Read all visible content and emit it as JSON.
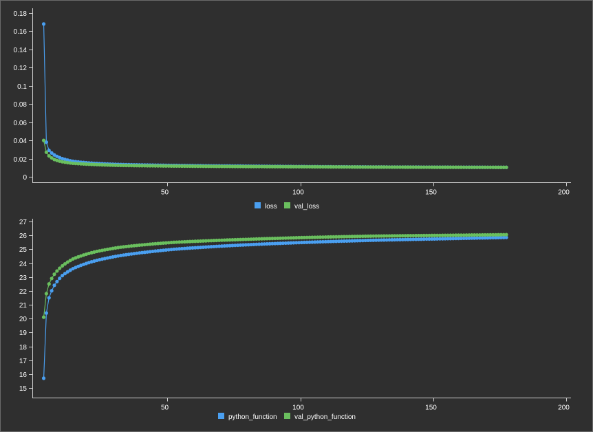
{
  "colors": {
    "background": "#2f2f2f",
    "axis": "#cfcfcf",
    "text": "#ffffff",
    "series_blue": "#4a9ff0",
    "series_green": "#6abf5e"
  },
  "chart_data": [
    {
      "type": "line",
      "title": "",
      "xlabel": "",
      "ylabel": "",
      "xlim": [
        0,
        200
      ],
      "ylim": [
        -0.005,
        0.185
      ],
      "x_ticks": [
        "50",
        "100",
        "150",
        "200"
      ],
      "y_ticks": [
        "0",
        "0.02",
        "0.04",
        "0.06",
        "0.08",
        "0.1",
        "0.12",
        "0.14",
        "0.16",
        "0.18"
      ],
      "legend": {
        "placement": "bottom-center"
      },
      "grid": false,
      "epochs": 175,
      "series": [
        {
          "name": "loss",
          "color": "#4a9ff0",
          "anchors": [
            [
              1,
              0.168
            ],
            [
              2,
              0.038
            ],
            [
              3,
              0.029
            ],
            [
              5,
              0.024
            ],
            [
              8,
              0.02
            ],
            [
              12,
              0.017
            ],
            [
              20,
              0.0148
            ],
            [
              30,
              0.0135
            ],
            [
              50,
              0.0125
            ],
            [
              75,
              0.0118
            ],
            [
              100,
              0.0112
            ],
            [
              125,
              0.0108
            ],
            [
              150,
              0.0106
            ],
            [
              175,
              0.0104
            ]
          ]
        },
        {
          "name": "val_loss",
          "color": "#6abf5e",
          "anchors": [
            [
              1,
              0.04
            ],
            [
              2,
              0.027
            ],
            [
              3,
              0.023
            ],
            [
              5,
              0.019
            ],
            [
              8,
              0.0165
            ],
            [
              12,
              0.0148
            ],
            [
              20,
              0.0135
            ],
            [
              30,
              0.0125
            ],
            [
              50,
              0.0118
            ],
            [
              75,
              0.0113
            ],
            [
              100,
              0.011
            ],
            [
              125,
              0.0107
            ],
            [
              150,
              0.0105
            ],
            [
              175,
              0.0104
            ]
          ]
        }
      ]
    },
    {
      "type": "line",
      "title": "",
      "xlabel": "",
      "ylabel": "",
      "xlim": [
        0,
        200
      ],
      "ylim": [
        14.75,
        27.1
      ],
      "x_ticks": [
        "50",
        "100",
        "150",
        "200"
      ],
      "y_ticks": [
        "15",
        "16",
        "17",
        "18",
        "19",
        "20",
        "21",
        "22",
        "23",
        "24",
        "25",
        "26",
        "27"
      ],
      "legend": {
        "placement": "bottom-center"
      },
      "grid": false,
      "epochs": 175,
      "series": [
        {
          "name": "python_function",
          "color": "#4a9ff0",
          "anchors": [
            [
              1,
              15.7
            ],
            [
              2,
              20.4
            ],
            [
              3,
              21.5
            ],
            [
              5,
              22.4
            ],
            [
              8,
              23.1
            ],
            [
              12,
              23.6
            ],
            [
              20,
              24.15
            ],
            [
              30,
              24.55
            ],
            [
              50,
              25.0
            ],
            [
              75,
              25.3
            ],
            [
              100,
              25.5
            ],
            [
              125,
              25.65
            ],
            [
              150,
              25.75
            ],
            [
              175,
              25.85
            ]
          ]
        },
        {
          "name": "val_python_function",
          "color": "#6abf5e",
          "anchors": [
            [
              1,
              20.1
            ],
            [
              2,
              21.8
            ],
            [
              3,
              22.5
            ],
            [
              5,
              23.2
            ],
            [
              8,
              23.8
            ],
            [
              12,
              24.3
            ],
            [
              20,
              24.8
            ],
            [
              30,
              25.15
            ],
            [
              50,
              25.5
            ],
            [
              75,
              25.7
            ],
            [
              100,
              25.85
            ],
            [
              125,
              25.95
            ],
            [
              150,
              26.0
            ],
            [
              175,
              26.05
            ]
          ]
        }
      ]
    }
  ]
}
